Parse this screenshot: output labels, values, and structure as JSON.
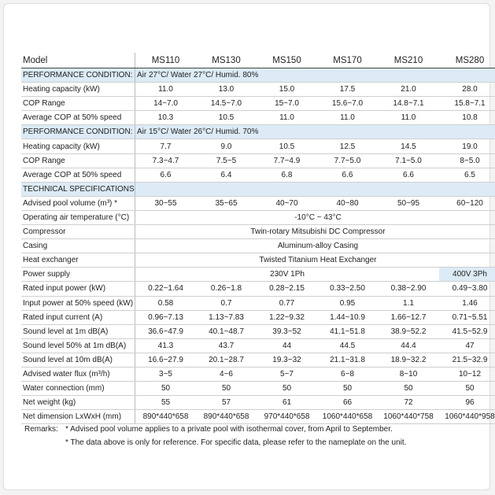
{
  "table": {
    "rows": [
      [
        "Model",
        "MS110",
        "MS130",
        "MS150",
        "MS170",
        "MS210",
        "MS280"
      ],
      [
        "PERFORMANCE CONDITION:",
        "Air 27°C/ Water 27°C/ Humid. 80%"
      ],
      [
        "Heating capacity (kW)",
        "11.0",
        "13.0",
        "15.0",
        "17.5",
        "21.0",
        "28.0"
      ],
      [
        "COP Range",
        "14~7.0",
        "14.5~7.0",
        "15~7.0",
        "15.6~7.0",
        "14.8~7.1",
        "15.8~7.1"
      ],
      [
        "Average COP at 50% speed",
        "10.3",
        "10.5",
        "11.0",
        "11.0",
        "11.0",
        "10.8"
      ],
      [
        "PERFORMANCE CONDITION:",
        "Air 15°C/ Water 26°C/ Humid. 70%"
      ],
      [
        "Heating capacity (kW)",
        "7.7",
        "9.0",
        "10.5",
        "12.5",
        "14.5",
        "19.0"
      ],
      [
        "COP Range",
        "7.3~4.7",
        "7.5~5",
        "7.7~4.9",
        "7.7~5.0",
        "7.1~5.0",
        "8~5.0"
      ],
      [
        "Average COP at 50% speed",
        "6.6",
        "6.4",
        "6.8",
        "6.6",
        "6.6",
        "6.5"
      ],
      [
        "TECHNICAL SPECIFICATIONS",
        ""
      ],
      [
        "Advised pool volume (m³) *",
        "30~55",
        "35~65",
        "40~70",
        "40~80",
        "50~95",
        "60~120"
      ],
      [
        "Operating air temperature (°C)",
        "-10°C ~ 43°C"
      ],
      [
        "Compressor",
        "Twin-rotary Mitsubishi DC Compressor"
      ],
      [
        "Casing",
        "Aluminum-alloy Casing"
      ],
      [
        "Heat exchanger",
        "Twisted Titanium Heat Exchanger"
      ],
      [
        "Power supply",
        "230V 1Ph",
        "400V 3Ph"
      ],
      [
        "Rated input power (kW)",
        "0.22~1.64",
        "0.26~1.8",
        "0.28~2.15",
        "0.33~2.50",
        "0.38~2.90",
        "0.49~3.80"
      ],
      [
        "Input power at 50% speed (kW)",
        "0.58",
        "0.7",
        "0.77",
        "0.95",
        "1.1",
        "1.46"
      ],
      [
        "Rated input current (A)",
        "0.96~7.13",
        "1.13~7.83",
        "1.22~9.32",
        "1.44~10.9",
        "1.66~12.7",
        "0.71~5.51"
      ],
      [
        "Sound level  at 1m dB(A)",
        "36.6~47.9",
        "40.1~48.7",
        "39.3~52",
        "41.1~51.8",
        "38.9~52.2",
        "41.5~52.9"
      ],
      [
        "Sound level  50% at 1m dB(A)",
        "41.3",
        "43.7",
        "44",
        "44.5",
        "44.4",
        "47"
      ],
      [
        "Sound level  at 10m dB(A)",
        "16.6~27.9",
        "20.1~28.7",
        "19.3~32",
        "21.1~31.8",
        "18.9~32.2",
        "21.5~32.9"
      ],
      [
        "Advised water flux (m³/h)",
        "3~5",
        "4~6",
        "5~7",
        "6~8",
        "8~10",
        "10~12"
      ],
      [
        "Water connection (mm)",
        "50",
        "50",
        "50",
        "50",
        "50",
        "50"
      ],
      [
        "Net weight (kg)",
        "55",
        "57",
        "61",
        "66",
        "72",
        "96"
      ],
      [
        "Net dimension LxWxH (mm)",
        "890*440*658",
        "890*440*658",
        "970*440*658",
        "1060*440*658",
        "1060*440*758",
        "1060*440*958"
      ]
    ]
  },
  "remarks": {
    "label": "Remarks:",
    "notes": [
      "* Advised pool volume applies to a private pool with isothermal cover, from April to September.",
      "* The data above is only for reference. For specific data, please refer to the nameplate on the unit."
    ]
  }
}
